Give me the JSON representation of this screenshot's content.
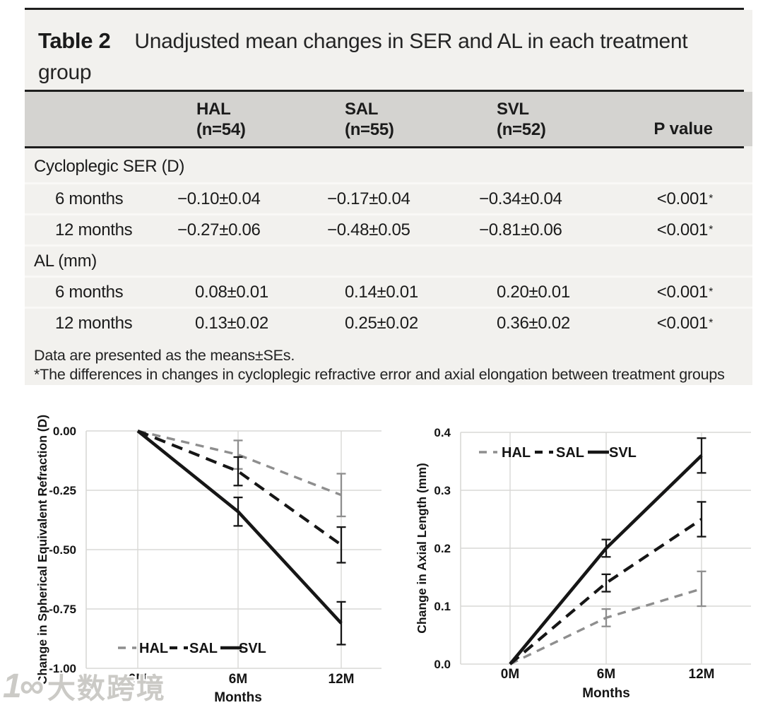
{
  "table": {
    "label": "Table 2",
    "caption": "Unadjusted mean changes in SER and AL in each treatment group",
    "groups": [
      {
        "name": "HAL",
        "n": "(n=54)"
      },
      {
        "name": "SAL",
        "n": "(n=55)"
      },
      {
        "name": "SVL",
        "n": "(n=52)"
      }
    ],
    "p_header": "P value",
    "sections": [
      {
        "label": "Cycloplegic SER (D)",
        "rows": [
          {
            "label": "6 months",
            "values": [
              "−0.10±0.04",
              "−0.17±0.04",
              "−0.34±0.04"
            ],
            "p": "<0.001",
            "p_star": "*"
          },
          {
            "label": "12 months",
            "values": [
              "−0.27±0.06",
              "−0.48±0.05",
              "−0.81±0.06"
            ],
            "p": "<0.001",
            "p_star": "*"
          }
        ]
      },
      {
        "label": "AL (mm)",
        "rows": [
          {
            "label": "6 months",
            "values": [
              "0.08±0.01",
              "0.14±0.01",
              "0.20±0.01"
            ],
            "p": "<0.001",
            "p_star": "*"
          },
          {
            "label": "12 months",
            "values": [
              "0.13±0.02",
              "0.25±0.02",
              "0.36±0.02"
            ],
            "p": "<0.001",
            "p_star": "*"
          }
        ]
      }
    ],
    "footnotes": [
      "Data are presented as the means±SEs.",
      "*The differences in changes in cycloplegic refractive error and axial elongation between treatment groups were all"
    ]
  },
  "colors": {
    "hal_gray": "#8e8e8e",
    "black": "#161616",
    "gridline": "#d9d8d6",
    "table_band": "#d4d3d0",
    "table_bg": "#f2f1ee"
  },
  "watermark": {
    "logo": "1∞",
    "text": "大数跨境"
  },
  "chart_data": [
    {
      "type": "line",
      "title": "",
      "ylabel": "Change in Spherical Equivalent Refraction (D)",
      "xlabel": "Months",
      "categories": [
        "0M",
        "6M",
        "12M"
      ],
      "ylim": [
        -1.0,
        0.0
      ],
      "yticks": [
        0,
        -0.25,
        -0.5,
        -0.75,
        -1.0
      ],
      "ytick_labels": [
        "0.00",
        "-0.25",
        "-0.50",
        "-0.75",
        "-1.00"
      ],
      "grid": true,
      "legend_position": "inside-bottom-center",
      "series": [
        {
          "name": "HAL",
          "color": "#8e8e8e",
          "line": "dashed",
          "values": [
            0,
            -0.1,
            -0.27
          ],
          "se": [
            0,
            0.04,
            0.06
          ]
        },
        {
          "name": "SAL",
          "color": "#161616",
          "line": "dashed",
          "values": [
            0,
            -0.17,
            -0.48
          ],
          "se": [
            0,
            0.04,
            0.05
          ]
        },
        {
          "name": "SVL",
          "color": "#161616",
          "line": "solid",
          "values": [
            0,
            -0.34,
            -0.81
          ],
          "se": [
            0,
            0.04,
            0.06
          ]
        }
      ]
    },
    {
      "type": "line",
      "title": "",
      "ylabel": "Change in Axial Length (mm)",
      "xlabel": "Months",
      "categories": [
        "0M",
        "6M",
        "12M"
      ],
      "ylim": [
        0.0,
        0.4
      ],
      "yticks": [
        0,
        0.1,
        0.2,
        0.3,
        0.4
      ],
      "ytick_labels": [
        "0.0",
        "0.1",
        "0.2",
        "0.3",
        "0.4"
      ],
      "grid": true,
      "legend_position": "inside-top-left",
      "series": [
        {
          "name": "HAL",
          "color": "#8e8e8e",
          "line": "dashed",
          "values": [
            0,
            0.08,
            0.13
          ],
          "se": [
            0,
            0.01,
            0.02
          ]
        },
        {
          "name": "SAL",
          "color": "#161616",
          "line": "dashed",
          "values": [
            0,
            0.14,
            0.25
          ],
          "se": [
            0,
            0.01,
            0.02
          ]
        },
        {
          "name": "SVL",
          "color": "#161616",
          "line": "solid",
          "values": [
            0,
            0.2,
            0.36
          ],
          "se": [
            0,
            0.01,
            0.02
          ]
        }
      ]
    }
  ]
}
